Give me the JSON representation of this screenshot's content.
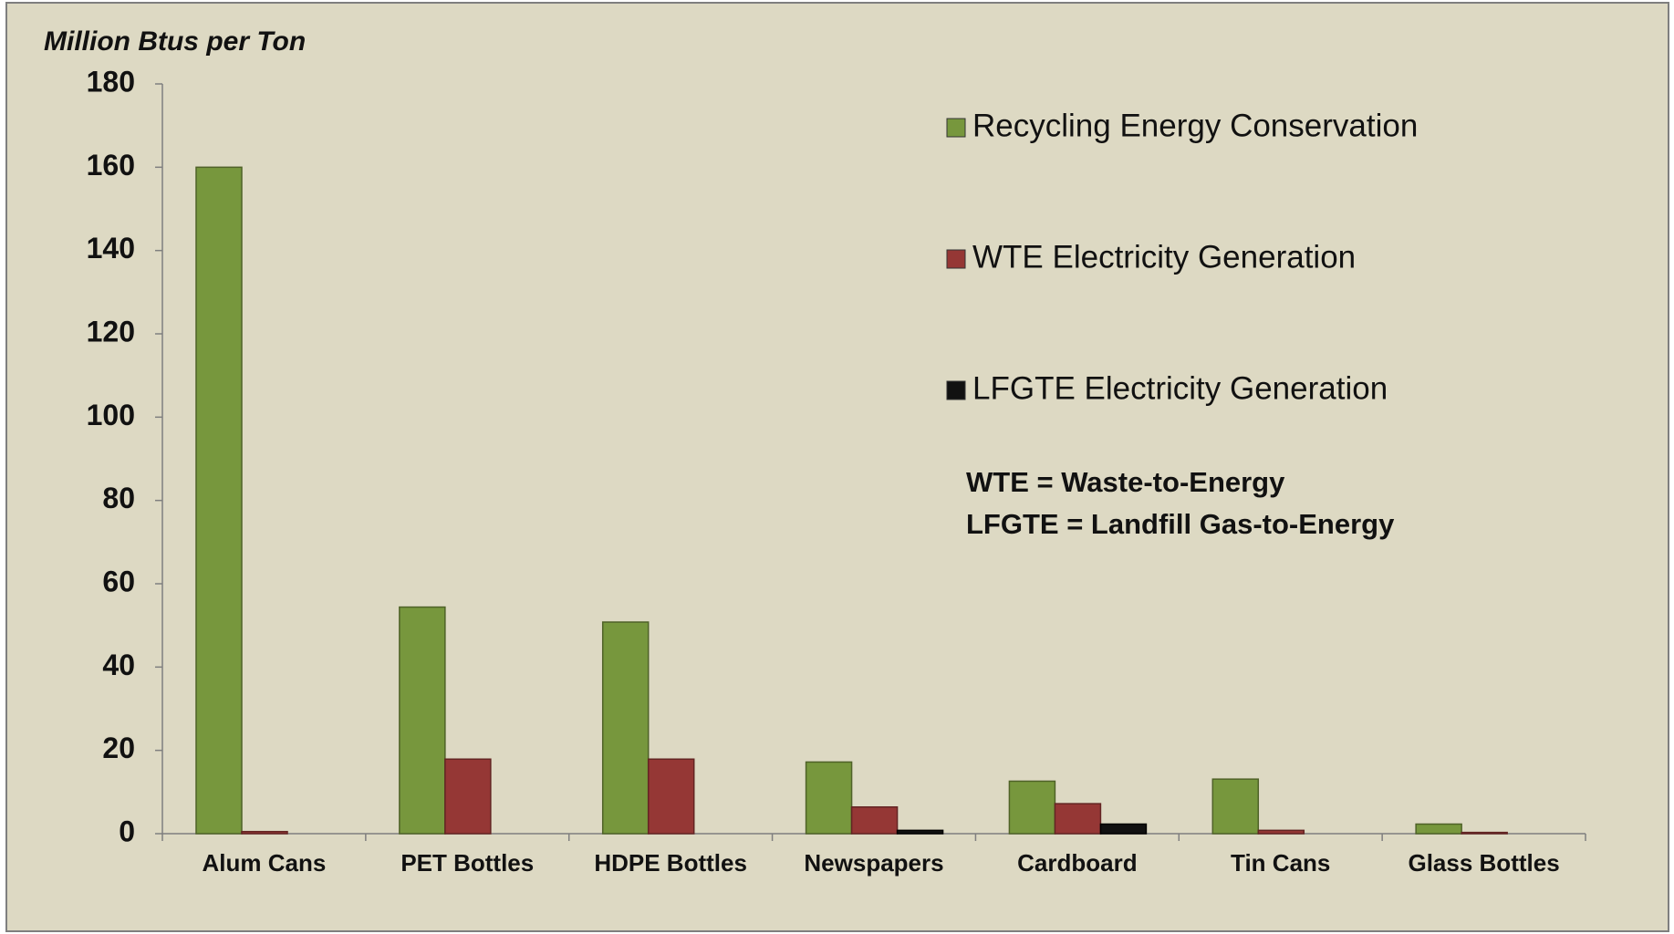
{
  "chart_data": {
    "type": "bar",
    "y_label": "Million Btus per Ton",
    "categories": [
      "Alum Cans",
      "PET Bottles",
      "HDPE Bottles",
      "Newspapers",
      "Cardboard",
      "Tin Cans",
      "Glass Bottles"
    ],
    "series": [
      {
        "name": "Recycling Energy Conservation",
        "color": "#77973d",
        "values": [
          160,
          54.4,
          50.8,
          17.2,
          12.6,
          13.1,
          2.3
        ]
      },
      {
        "name": "WTE Electricity Generation",
        "color": "#953735",
        "values": [
          0.5,
          17.9,
          17.9,
          6.4,
          7.2,
          0.8,
          0.3
        ]
      },
      {
        "name": "LFGTE Electricity Generation",
        "color": "#111111",
        "values": [
          0,
          0,
          0,
          0.8,
          2.3,
          0,
          0
        ]
      }
    ],
    "annotations": [
      "WTE = Waste-to-Energy",
      "LFGTE = Landfill Gas-to-Energy"
    ],
    "ylim": [
      0,
      180
    ],
    "yticks": [
      0,
      20,
      40,
      60,
      80,
      100,
      120,
      140,
      160,
      180
    ],
    "grid": false,
    "legend": "top-right"
  }
}
